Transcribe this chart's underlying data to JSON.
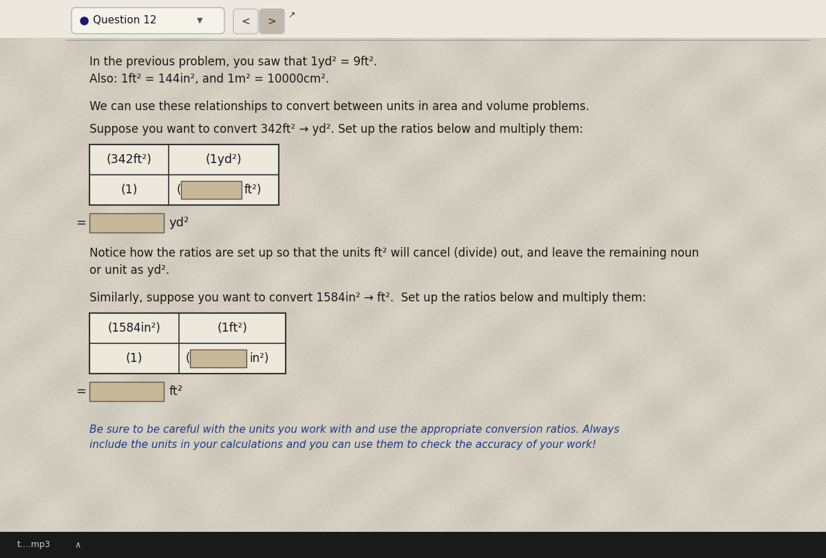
{
  "bg_color_base": "#d8d0c0",
  "bg_light": "#e8e4d8",
  "title_bar_bg": "#f2efe8",
  "title_bar_border": "#bbbbbb",
  "title": "Question 12",
  "dot_color": "#1a1a6e",
  "header_line_color": "#aaaaaa",
  "text_color": "#1a1a1a",
  "blue_text_color": "#1a3a8a",
  "cell_bg_empty": "#c8b898",
  "cell_bg_white": "#f0ece0",
  "cell_border": "#444444",
  "bottom_bar_color": "#1a1a1a",
  "bottom_text_color": "#cccccc",
  "line1": "In the previous problem, you saw that 1yd² = 9ft².",
  "line2": "Also: 1ft² = 144in², and 1m² = 10000cm².",
  "line3": "We can use these relationships to convert between units in area and volume problems.",
  "line4": "Suppose you want to convert 342ft² → yd². Set up the ratios below and multiply them:",
  "line5a": "Notice how the ratios are set up so that the units ft² will cancel (divide) out, and leave the remaining noun",
  "line5b": "or unit as yd².",
  "line6": "Similarly, suppose you want to convert 1584in² → ft².  Set up the ratios below and multiply them:",
  "line7": "Be sure to be careful with the units you work with and use the appropriate conversion ratios. Always",
  "line8": "include the units in your calculations and you can use them to check the accuracy of your work!",
  "fs_body": 12,
  "fs_title": 11,
  "fs_cell": 12
}
